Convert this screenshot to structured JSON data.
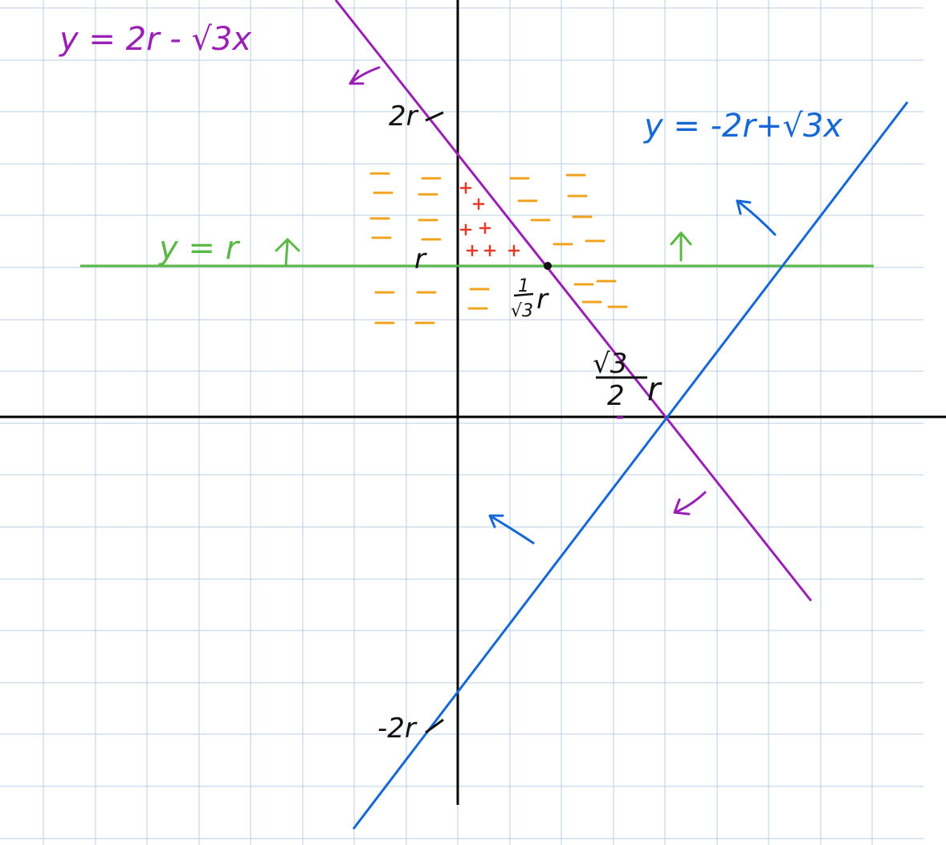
{
  "colors": {
    "grid": "#b9cfe3",
    "axes": "#000000",
    "purple": "#9a1fb5",
    "blue": "#1668d6",
    "green": "#5ab847",
    "orange": "#f1a21f",
    "red": "#e53a2a",
    "black": "#111111"
  },
  "labels": {
    "purple_line": "y = 2r - √3x",
    "blue_line": "y = -2r+√3x",
    "green_line": "y = r",
    "tick_2r": "2r",
    "tick_r": "r",
    "tick_neg2r": "-2r",
    "frac_one": "1",
    "frac_sqrt3": "√3",
    "frac_r": "r",
    "frac_sqrt3_top": "√3",
    "frac_two": "2",
    "frac_r2": "r"
  },
  "marks": {
    "minus": "—",
    "plus": "+"
  }
}
